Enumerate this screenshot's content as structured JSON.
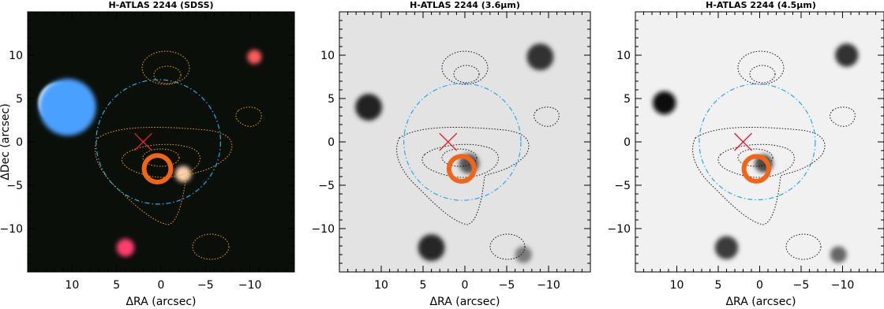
{
  "chart_data": [
    {
      "type": "image",
      "title": "H-ATLAS 2244 (SDSS)",
      "xlabel": "ΔRA (arcsec)",
      "ylabel": "ΔDec (arcsec)",
      "xlim": [
        15,
        -15
      ],
      "ylim": [
        -15,
        15
      ],
      "x_ticks": [
        10,
        5,
        0,
        -5,
        -10
      ],
      "y_ticks": [
        10,
        5,
        0,
        -5,
        -10
      ],
      "background": "#0a0f0a",
      "contour_color": "#ffa500",
      "sources": [
        {
          "x": 11.5,
          "y": 4.5,
          "r": 2.3,
          "color": "#ffffff"
        },
        {
          "x": 10.5,
          "y": 4.0,
          "r": 3.2,
          "color": "#4aa0ff"
        },
        {
          "x": -2.5,
          "y": -3.7,
          "r": 0.9,
          "color": "#ffd2b0"
        },
        {
          "x": 4.0,
          "y": -12.2,
          "r": 1.0,
          "color": "#ff3c6e"
        },
        {
          "x": -10.5,
          "y": 9.8,
          "r": 0.8,
          "color": "#ff5a5a"
        }
      ],
      "markers": {
        "cross": {
          "x": 2.0,
          "y": 0.0,
          "color": "#e0202a"
        },
        "ring": {
          "x": 0.4,
          "y": -3.1,
          "r": 1.5,
          "color": "#f26418"
        },
        "circle": {
          "x": 0.3,
          "y": 0.0,
          "r": 7.0,
          "color": "#22aaee"
        }
      }
    },
    {
      "type": "image",
      "title": "H-ATLAS 2244 (3.6μm)",
      "xlabel": "ΔRA (arcsec)",
      "ylabel": "",
      "xlim": [
        15,
        -15
      ],
      "ylim": [
        -15,
        15
      ],
      "x_ticks": [
        10,
        5,
        0,
        -5,
        -10
      ],
      "y_ticks": [
        10,
        5,
        0,
        -5,
        -10
      ],
      "background": "#e3e3e3",
      "contour_color": "#111111",
      "sources": [
        {
          "x": 11.5,
          "y": 4.0,
          "r": 1.6,
          "color": "#202020"
        },
        {
          "x": -9.0,
          "y": 9.8,
          "r": 1.6,
          "color": "#333333"
        },
        {
          "x": 4.0,
          "y": -12.2,
          "r": 1.6,
          "color": "#262626"
        },
        {
          "x": -0.5,
          "y": -2.5,
          "r": 1.2,
          "color": "#555555"
        },
        {
          "x": -7.0,
          "y": -13.0,
          "r": 1.0,
          "color": "#7a7a7a"
        }
      ],
      "markers": {
        "cross": {
          "x": 2.0,
          "y": 0.0,
          "color": "#e0202a"
        },
        "ring": {
          "x": 0.4,
          "y": -3.1,
          "r": 1.5,
          "color": "#f26418"
        },
        "circle": {
          "x": 0.3,
          "y": 0.0,
          "r": 7.0,
          "color": "#22aaee"
        }
      }
    },
    {
      "type": "image",
      "title": "H-ATLAS 2244 (4.5μm)",
      "xlabel": "ΔRA (arcsec)",
      "ylabel": "",
      "xlim": [
        15,
        -15
      ],
      "ylim": [
        -15,
        15
      ],
      "x_ticks": [
        10,
        5,
        0,
        -5,
        -10
      ],
      "y_ticks": [
        10,
        5,
        0,
        -5,
        -10
      ],
      "background": "#f1f1f1",
      "contour_color": "#111111",
      "sources": [
        {
          "x": 11.5,
          "y": 4.5,
          "r": 1.4,
          "color": "#111111"
        },
        {
          "x": -10.5,
          "y": 10.0,
          "r": 1.4,
          "color": "#333333"
        },
        {
          "x": 4.0,
          "y": -12.2,
          "r": 1.4,
          "color": "#3a3a3a"
        },
        {
          "x": -0.5,
          "y": -2.5,
          "r": 1.1,
          "color": "#4a4a4a"
        },
        {
          "x": -9.5,
          "y": -13.0,
          "r": 1.0,
          "color": "#666666"
        }
      ],
      "markers": {
        "cross": {
          "x": 2.0,
          "y": 0.0,
          "color": "#e0202a"
        },
        "ring": {
          "x": 0.4,
          "y": -3.1,
          "r": 1.5,
          "color": "#f26418"
        },
        "circle": {
          "x": 0.3,
          "y": 0.0,
          "r": 7.0,
          "color": "#22aaee"
        }
      }
    }
  ]
}
